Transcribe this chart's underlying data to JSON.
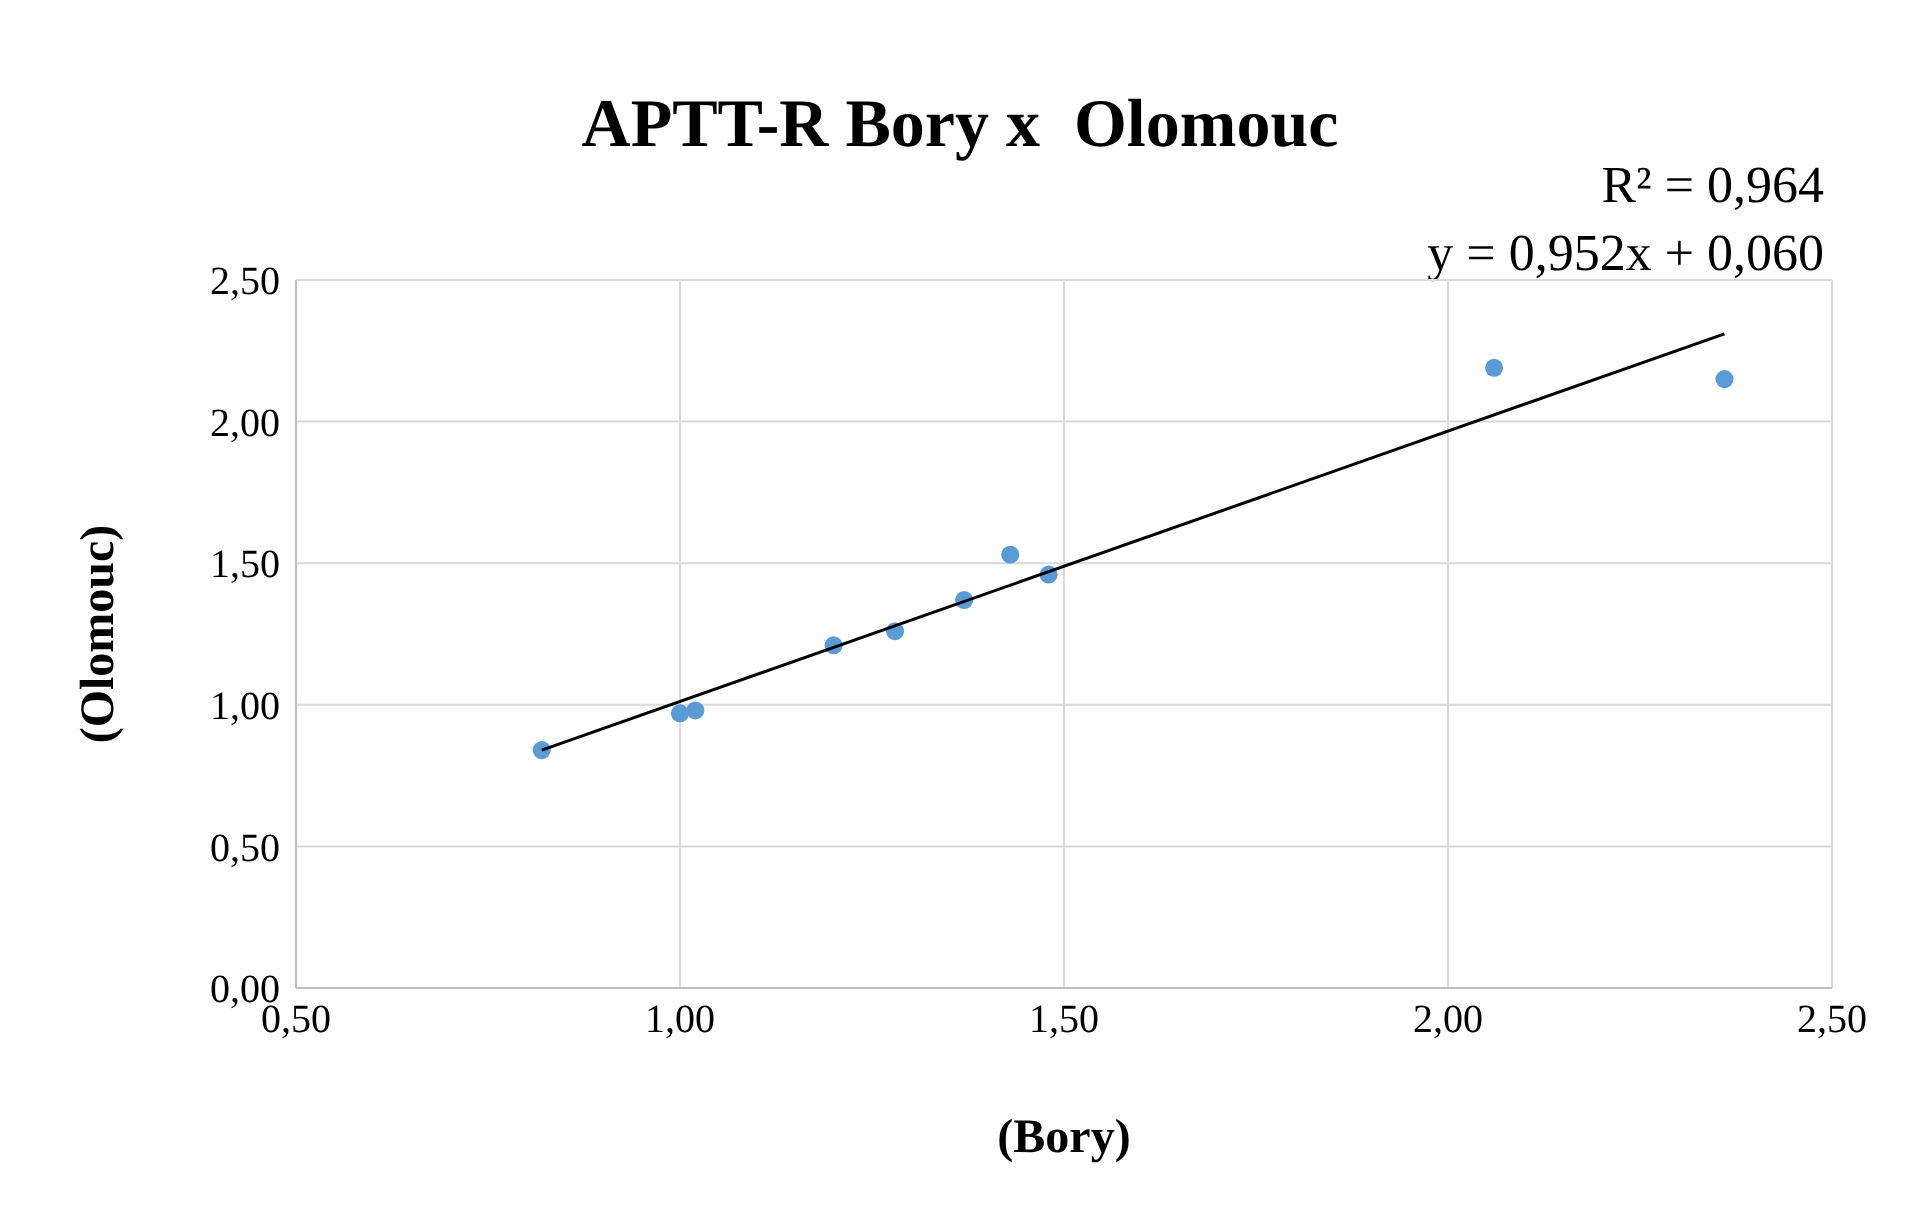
{
  "chart_data": {
    "type": "scatter",
    "title": "APTT-R Bory x  Olomouc",
    "xlabel": "(Bory)",
    "ylabel": "(Olomouc)",
    "annotations": [
      "R² = 0,964",
      "y = 0,952x + 0,060"
    ],
    "xlim": [
      0.5,
      2.5
    ],
    "xticks": [
      {
        "value": 0.5,
        "label": "0,50"
      },
      {
        "value": 1,
        "label": "1,00"
      },
      {
        "value": 1.5,
        "label": "1,50"
      },
      {
        "value": 2,
        "label": "2,00"
      },
      {
        "value": 2.5,
        "label": "2,50"
      }
    ],
    "ylim": [
      0,
      2.5
    ],
    "yticks": [
      {
        "value": 0,
        "label": "0,00"
      },
      {
        "value": 0.5,
        "label": "0,50"
      },
      {
        "value": 1,
        "label": "1,00"
      },
      {
        "value": 1.5,
        "label": "1,50"
      },
      {
        "value": 2,
        "label": "2,00"
      },
      {
        "value": 2.5,
        "label": "2,50"
      }
    ],
    "grid": true,
    "marker": "circle",
    "series": [
      {
        "color": "#5b9bd5",
        "x": [
          0.82,
          1.0,
          1.02,
          1.2,
          1.28,
          1.37,
          1.43,
          1.48,
          2.06,
          2.36
        ],
        "values": [
          0.84,
          0.97,
          0.98,
          1.21,
          1.26,
          1.37,
          1.53,
          1.46,
          2.19,
          2.15
        ]
      },
      {
        "type": "line",
        "color": "#000000",
        "marker": "none",
        "x": [
          0.82,
          2.36
        ],
        "values": [
          0.84,
          2.31
        ]
      }
    ]
  }
}
